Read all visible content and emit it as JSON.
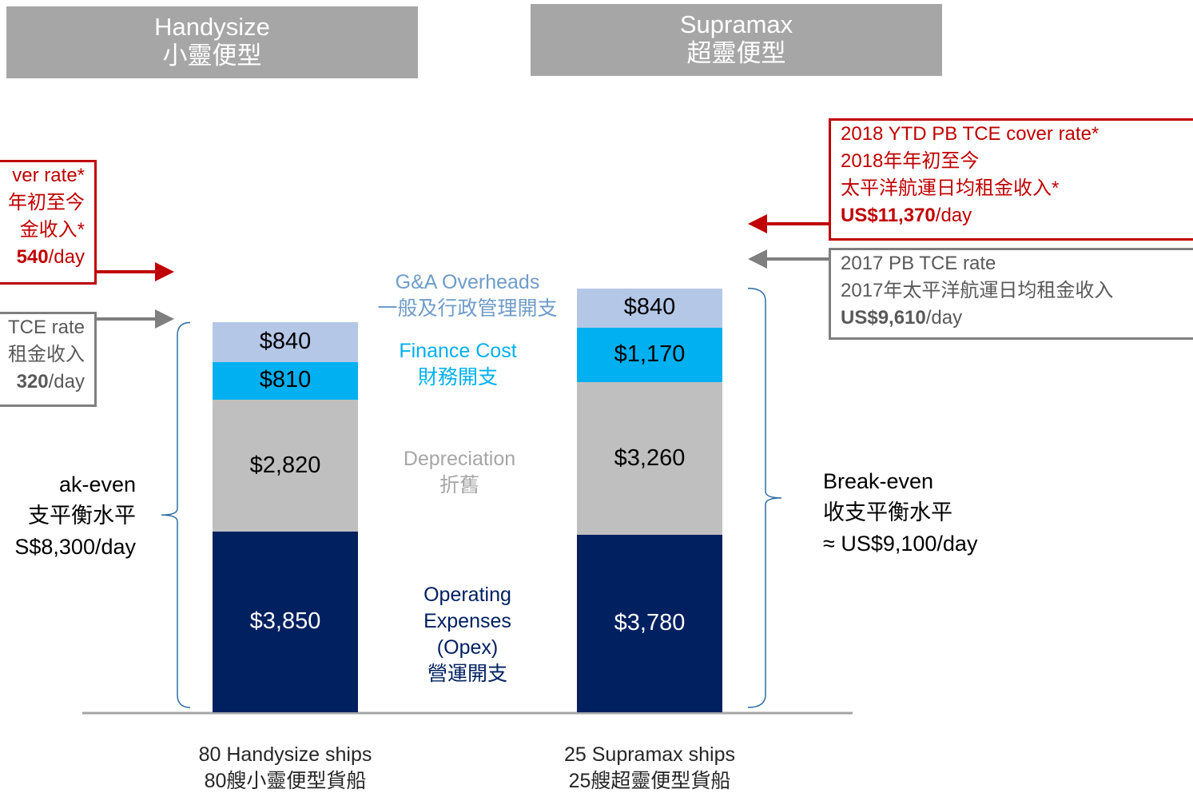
{
  "chart_data": {
    "type": "bar",
    "stacked": true,
    "categories": [
      "Handysize",
      "Supramax"
    ],
    "categories_zh": [
      "小靈便型",
      "超靈便型"
    ],
    "ship_labels": [
      [
        "80 Handysize ships",
        "80艘小靈便型貨船"
      ],
      [
        "25 Supramax ships",
        "25艘超靈便型貨船"
      ]
    ],
    "series": [
      {
        "name": "Operating Expenses (Opex)",
        "name_zh": "營運開支",
        "color": "#002060",
        "label_color": "#002060",
        "text_color": "#ffffff",
        "values": [
          3850,
          3780
        ],
        "value_labels": [
          "$3,850",
          "$3,780"
        ]
      },
      {
        "name": "Depreciation",
        "name_zh": "折舊",
        "color": "#bfbfbf",
        "label_color": "#a6a6a6",
        "text_color": "#000000",
        "values": [
          2820,
          3260
        ],
        "value_labels": [
          "$2,820",
          "$3,260"
        ]
      },
      {
        "name": "Finance Cost",
        "name_zh": "財務開支",
        "color": "#00b0f0",
        "label_color": "#00b0f0",
        "text_color": "#000000",
        "values": [
          810,
          1170
        ],
        "value_labels": [
          "$810",
          "$1,170"
        ]
      },
      {
        "name": "G&A Overheads",
        "name_zh": "一般及行政管理開支",
        "color": "#b4c7e7",
        "label_color": "#6f9cc9",
        "text_color": "#000000",
        "values": [
          840,
          840
        ],
        "value_labels": [
          "$840",
          "$840"
        ]
      }
    ],
    "break_even": [
      [
        "ak-even",
        "支平衡水平",
        "S$8,300/day"
      ],
      [
        "Break-even",
        "收支平衡水平",
        "≈ US$9,100/day"
      ]
    ],
    "cover_rate": [
      {
        "lines": [
          "ver rate*",
          "年初至今",
          "金收入*"
        ],
        "bold": "540",
        "unit": "/day"
      },
      {
        "lines": [
          "2018 YTD PB TCE cover rate*",
          "2018年年初至今",
          "太平洋航運日均租金收入*"
        ],
        "bold": "US$11,370",
        "unit": "/day"
      }
    ],
    "tce_rate": [
      {
        "lines": [
          "TCE rate",
          "租金收入"
        ],
        "bold": "320",
        "unit": "/day"
      },
      {
        "lines": [
          "2017 PB TCE rate",
          "2017年太平洋航運日均租金收入"
        ],
        "bold": "US$9,610",
        "unit": "/day"
      }
    ]
  }
}
